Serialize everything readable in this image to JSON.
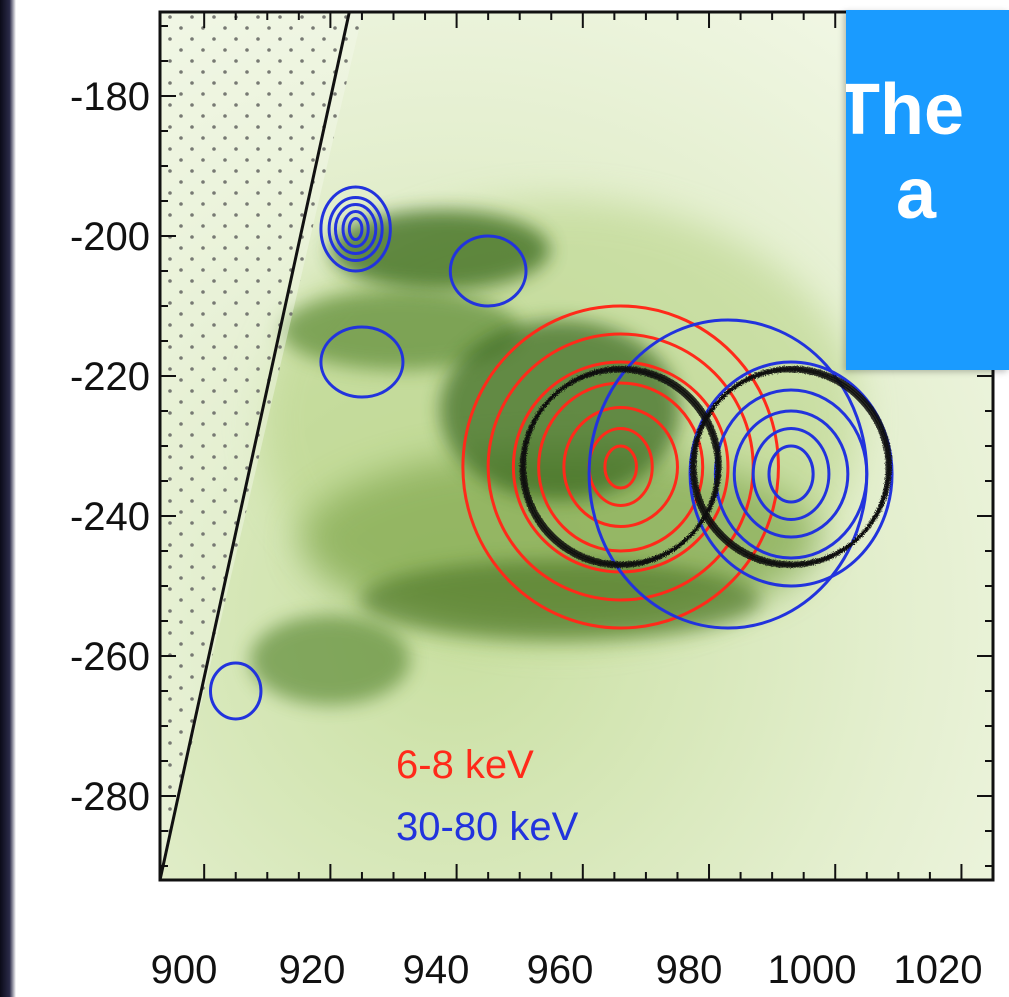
{
  "chart_data": {
    "type": "contour",
    "title": "",
    "xlabel": "",
    "ylabel": "",
    "xlim": [
      893,
      1025
    ],
    "ylim": [
      -292,
      -168
    ],
    "x_ticks": [
      900,
      920,
      940,
      960,
      980,
      1000,
      1020
    ],
    "x_tick_labels": [
      "900",
      "920",
      "940",
      "960",
      "980",
      "1000",
      "1020"
    ],
    "y_ticks": [
      -180,
      -200,
      -220,
      -240,
      -260,
      -280
    ],
    "y_tick_labels": [
      "-180",
      "-200",
      "-220",
      "-240",
      "-260",
      "-280"
    ],
    "grid": false,
    "legend": {
      "placement": "bottom-left",
      "entries": [
        {
          "label": "6-8 keV",
          "color": "#ff2a1a"
        },
        {
          "label": "30-80 keV",
          "color": "#2233dd"
        }
      ]
    },
    "background_colormap": "green",
    "limb_line": {
      "points": [
        [
          893,
          -292
        ],
        [
          923,
          -168
        ]
      ],
      "region": "off-limb, dotted"
    },
    "contours": [
      {
        "band": "6-8 keV",
        "color": "#ff2a1a",
        "center": [
          966,
          -233
        ],
        "levels": [
          {
            "rx": 2.5,
            "ry": 3
          },
          {
            "rx": 5,
            "ry": 5.5
          },
          {
            "rx": 9,
            "ry": 8.5
          },
          {
            "rx": 13,
            "ry": 12
          },
          {
            "rx": 17,
            "ry": 15
          },
          {
            "rx": 21,
            "ry": 19
          },
          {
            "rx": 25,
            "ry": 23
          }
        ]
      },
      {
        "band": "30-80 keV",
        "color": "#2233dd",
        "center": [
          993,
          -234
        ],
        "levels": [
          {
            "rx": 3.5,
            "ry": 4
          },
          {
            "rx": 6,
            "ry": 6.5
          },
          {
            "rx": 9,
            "ry": 9
          },
          {
            "rx": 12,
            "ry": 12
          },
          {
            "rx": 16,
            "ry": 16
          }
        ]
      },
      {
        "band": "30-80 keV",
        "color": "#2233dd",
        "center": [
          983,
          -234
        ],
        "levels": [
          {
            "rx": 22,
            "ry": 22
          }
        ]
      },
      {
        "band": "30-80 keV",
        "color": "#2233dd",
        "center": [
          924,
          -199
        ],
        "levels": [
          {
            "rx": 1,
            "ry": 1.5
          },
          {
            "rx": 2,
            "ry": 2.5
          },
          {
            "rx": 3.2,
            "ry": 3.5
          },
          {
            "rx": 4.2,
            "ry": 4.5
          },
          {
            "rx": 5.5,
            "ry": 6
          }
        ]
      },
      {
        "band": "30-80 keV",
        "color": "#2233dd",
        "center": [
          945,
          -205
        ],
        "levels": [
          {
            "rx": 6,
            "ry": 5
          }
        ]
      },
      {
        "band": "30-80 keV",
        "color": "#2233dd",
        "center": [
          925,
          -218
        ],
        "levels": [
          {
            "rx": 6.5,
            "ry": 5
          }
        ]
      },
      {
        "band": "30-80 keV",
        "color": "#2233dd",
        "center": [
          905,
          -265
        ],
        "levels": [
          {
            "rx": 4,
            "ry": 4
          }
        ]
      }
    ],
    "highlight_circles": [
      {
        "center": [
          966,
          -233
        ],
        "radius": 15.5,
        "color": "#111111"
      },
      {
        "center": [
          993,
          -233
        ],
        "radius": 15.5,
        "color": "#111111"
      }
    ]
  },
  "callout": {
    "text": "The\n   a\n   ",
    "background": "#1a9bff",
    "text_color": "#ffffff"
  }
}
